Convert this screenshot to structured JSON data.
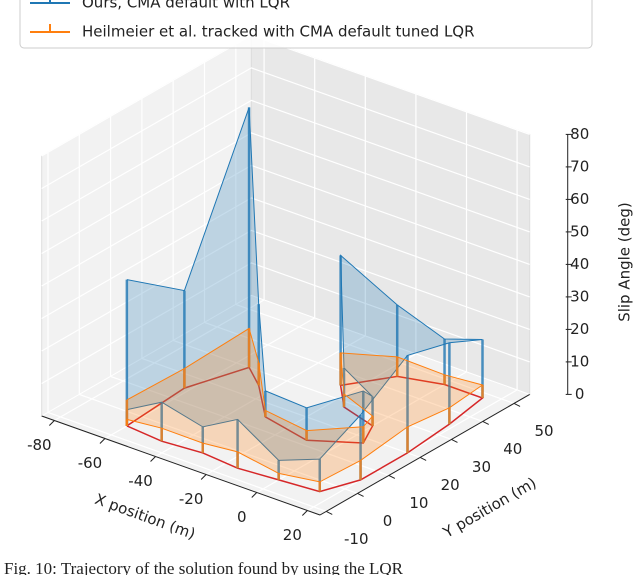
{
  "chart_data": {
    "type": "3d-stem",
    "x_label": "X position (m)",
    "y_label": "Y position (m)",
    "z_label": "Slip Angle (deg)",
    "caption": "Fig. 10: Trajectory of the solution found by using the LQR",
    "legend": "top-left",
    "xlim": [
      -85,
      25
    ],
    "ylim": [
      -12,
      55
    ],
    "zlim": [
      0,
      80
    ],
    "xticks": [
      -80,
      -60,
      -40,
      -20,
      0,
      20
    ],
    "yticks": [
      -10,
      0,
      10,
      20,
      30,
      40,
      50
    ],
    "zticks": [
      0,
      10,
      20,
      30,
      40,
      50,
      60,
      70,
      80
    ],
    "grid": true,
    "track_color": "#d62728",
    "x": [
      -60,
      -45,
      -30,
      -15,
      0,
      15,
      20,
      20,
      18,
      15,
      0,
      -15,
      -25,
      -15,
      0,
      5,
      -10,
      -30,
      -45,
      -55,
      -62,
      -60
    ],
    "y": [
      -5,
      -6,
      -5,
      -6,
      -5,
      -4,
      5,
      20,
      35,
      48,
      48,
      45,
      35,
      28,
      25,
      18,
      12,
      15,
      25,
      30,
      15,
      -5
    ],
    "series": [
      {
        "name": "Ours, CMA default with LQR",
        "color": "#1f77b4",
        "values": [
          5,
          12,
          8,
          15,
          6,
          10,
          20,
          30,
          25,
          18,
          14,
          22,
          40,
          12,
          9,
          16,
          10,
          8,
          25,
          80,
          30,
          45
        ]
      },
      {
        "name": "Heilmeier et al. tracked with CMA default tuned LQR",
        "color": "#ff7f0e",
        "values": [
          2,
          4,
          3,
          5,
          2,
          3,
          6,
          8,
          5,
          4,
          3,
          6,
          10,
          4,
          3,
          5,
          3,
          2,
          7,
          12,
          6,
          8
        ]
      }
    ]
  }
}
